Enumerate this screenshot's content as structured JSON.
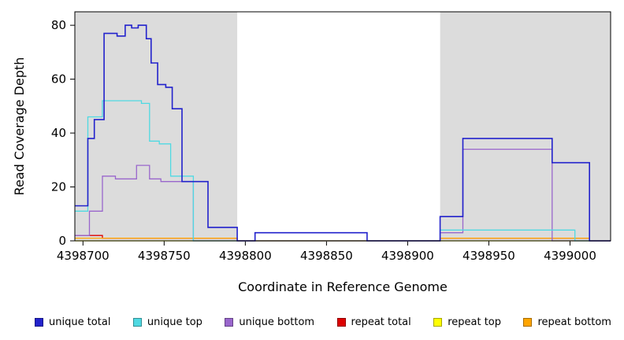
{
  "chart_data": {
    "type": "line",
    "interpolation": "step-after",
    "title": "",
    "xlabel": "Coordinate in Reference Genome",
    "ylabel": "Read Coverage Depth",
    "xlim": [
      4398695,
      4399025
    ],
    "ylim": [
      0,
      85
    ],
    "xticks": [
      4398700,
      4398750,
      4398800,
      4398850,
      4398900,
      4398950,
      4399000
    ],
    "yticks": [
      0,
      20,
      40,
      60,
      80
    ],
    "grid": false,
    "shade_color": "#DCDCDC",
    "shaded_regions": [
      [
        4398695,
        4398795
      ],
      [
        4398920,
        4399025
      ]
    ],
    "draw_order": [
      4,
      3,
      5,
      2,
      1,
      0
    ],
    "series": [
      {
        "name": "unique total",
        "color": "#2222CC",
        "width": 1.6,
        "points": [
          [
            4398695,
            13
          ],
          [
            4398703,
            38
          ],
          [
            4398707,
            45
          ],
          [
            4398713,
            77
          ],
          [
            4398721,
            76
          ],
          [
            4398726,
            80
          ],
          [
            4398730,
            79
          ],
          [
            4398734,
            80
          ],
          [
            4398739,
            75
          ],
          [
            4398742,
            66
          ],
          [
            4398746,
            58
          ],
          [
            4398751,
            57
          ],
          [
            4398755,
            49
          ],
          [
            4398761,
            22
          ],
          [
            4398777,
            5
          ],
          [
            4398795,
            0
          ],
          [
            4398806,
            3
          ],
          [
            4398875,
            0
          ],
          [
            4398920,
            9
          ],
          [
            4398934,
            38
          ],
          [
            4398989,
            29
          ],
          [
            4399012,
            0
          ],
          [
            4399025,
            0
          ]
        ]
      },
      {
        "name": "unique top",
        "color": "#4FD9E2",
        "width": 1.3,
        "points": [
          [
            4398695,
            11
          ],
          [
            4398703,
            46
          ],
          [
            4398712,
            52
          ],
          [
            4398736,
            51
          ],
          [
            4398741,
            37
          ],
          [
            4398747,
            36
          ],
          [
            4398754,
            24
          ],
          [
            4398768,
            0
          ],
          [
            4398920,
            4
          ],
          [
            4399003,
            0
          ],
          [
            4399025,
            0
          ]
        ]
      },
      {
        "name": "unique bottom",
        "color": "#9966CC",
        "width": 1.3,
        "points": [
          [
            4398695,
            2
          ],
          [
            4398704,
            11
          ],
          [
            4398712,
            24
          ],
          [
            4398720,
            23
          ],
          [
            4398733,
            28
          ],
          [
            4398741,
            23
          ],
          [
            4398748,
            22
          ],
          [
            4398768,
            0
          ],
          [
            4398920,
            3
          ],
          [
            4398934,
            34
          ],
          [
            4398989,
            0
          ],
          [
            4399025,
            0
          ]
        ]
      },
      {
        "name": "repeat total",
        "color": "#DD0000",
        "width": 1.3,
        "points": [
          [
            4398695,
            2
          ],
          [
            4398712,
            1
          ],
          [
            4398795,
            0
          ],
          [
            4398920,
            1
          ],
          [
            4399012,
            0
          ],
          [
            4399025,
            0
          ]
        ]
      },
      {
        "name": "repeat top",
        "color": "#FFFF00",
        "width": 1.3,
        "points": [
          [
            4398695,
            0
          ],
          [
            4399025,
            0
          ]
        ]
      },
      {
        "name": "repeat bottom",
        "color": "#FFA500",
        "width": 1.3,
        "points": [
          [
            4398695,
            1
          ],
          [
            4398795,
            0
          ],
          [
            4398920,
            1
          ],
          [
            4399012,
            0
          ],
          [
            4399025,
            0
          ]
        ]
      }
    ],
    "legend": [
      {
        "label": "unique total",
        "color": "#2222CC"
      },
      {
        "label": "unique top",
        "color": "#4FD9E2"
      },
      {
        "label": "unique bottom",
        "color": "#9966CC"
      },
      {
        "label": "repeat total",
        "color": "#DD0000"
      },
      {
        "label": "repeat top",
        "color": "#FFFF00"
      },
      {
        "label": "repeat bottom",
        "color": "#FFA500"
      }
    ],
    "legend_position": "bottom"
  }
}
